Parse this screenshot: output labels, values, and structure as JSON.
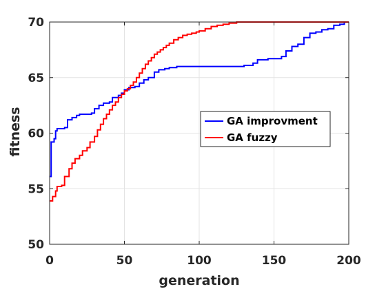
{
  "chart_data": {
    "type": "line",
    "title": "",
    "xlabel": "generation",
    "ylabel": "fitness",
    "xlim": [
      0,
      200
    ],
    "ylim": [
      50,
      70
    ],
    "xticks": [
      0,
      50,
      100,
      150,
      200
    ],
    "yticks": [
      50,
      55,
      60,
      65,
      70
    ],
    "xtick_labels": [
      "0",
      "50",
      "100",
      "150",
      "200"
    ],
    "ytick_labels": [
      "50",
      "55",
      "60",
      "65",
      "70"
    ],
    "grid": true,
    "legend_position": "center-right",
    "series": [
      {
        "name": "GA improvment",
        "color": "#0000ff",
        "step": true,
        "points": [
          [
            0,
            56.1
          ],
          [
            1,
            59.2
          ],
          [
            3,
            59.5
          ],
          [
            4,
            60.2
          ],
          [
            5,
            60.4
          ],
          [
            10,
            60.5
          ],
          [
            12,
            61.2
          ],
          [
            15,
            61.4
          ],
          [
            18,
            61.6
          ],
          [
            20,
            61.7
          ],
          [
            28,
            61.8
          ],
          [
            30,
            62.2
          ],
          [
            33,
            62.5
          ],
          [
            36,
            62.7
          ],
          [
            40,
            62.8
          ],
          [
            42,
            63.2
          ],
          [
            46,
            63.4
          ],
          [
            48,
            63.6
          ],
          [
            50,
            63.9
          ],
          [
            53,
            64.1
          ],
          [
            57,
            64.2
          ],
          [
            60,
            64.5
          ],
          [
            63,
            64.8
          ],
          [
            66,
            65.0
          ],
          [
            70,
            65.5
          ],
          [
            73,
            65.7
          ],
          [
            77,
            65.8
          ],
          [
            80,
            65.9
          ],
          [
            85,
            66.0
          ],
          [
            100,
            66.0
          ],
          [
            125,
            66.0
          ],
          [
            130,
            66.1
          ],
          [
            136,
            66.3
          ],
          [
            139,
            66.6
          ],
          [
            146,
            66.7
          ],
          [
            150,
            66.7
          ],
          [
            155,
            66.9
          ],
          [
            158,
            67.4
          ],
          [
            162,
            67.8
          ],
          [
            166,
            68.0
          ],
          [
            170,
            68.6
          ],
          [
            174,
            69.0
          ],
          [
            178,
            69.1
          ],
          [
            182,
            69.3
          ],
          [
            186,
            69.4
          ],
          [
            190,
            69.7
          ],
          [
            194,
            69.8
          ],
          [
            197,
            70.0
          ],
          [
            200,
            70.0
          ]
        ]
      },
      {
        "name": "GA fuzzy",
        "color": "#ff0000",
        "step": true,
        "points": [
          [
            0,
            53.9
          ],
          [
            2,
            54.3
          ],
          [
            4,
            54.8
          ],
          [
            5,
            55.2
          ],
          [
            8,
            55.3
          ],
          [
            10,
            56.1
          ],
          [
            13,
            56.8
          ],
          [
            15,
            57.3
          ],
          [
            17,
            57.7
          ],
          [
            20,
            58.0
          ],
          [
            22,
            58.4
          ],
          [
            25,
            58.7
          ],
          [
            27,
            59.2
          ],
          [
            30,
            59.7
          ],
          [
            32,
            60.3
          ],
          [
            34,
            60.8
          ],
          [
            36,
            61.3
          ],
          [
            38,
            61.7
          ],
          [
            40,
            62.1
          ],
          [
            42,
            62.5
          ],
          [
            44,
            62.8
          ],
          [
            46,
            63.2
          ],
          [
            48,
            63.5
          ],
          [
            50,
            63.8
          ],
          [
            52,
            64.0
          ],
          [
            54,
            64.3
          ],
          [
            56,
            64.6
          ],
          [
            58,
            65.0
          ],
          [
            60,
            65.4
          ],
          [
            62,
            65.8
          ],
          [
            64,
            66.2
          ],
          [
            66,
            66.5
          ],
          [
            68,
            66.8
          ],
          [
            70,
            67.1
          ],
          [
            72,
            67.3
          ],
          [
            74,
            67.5
          ],
          [
            76,
            67.7
          ],
          [
            78,
            67.9
          ],
          [
            80,
            68.1
          ],
          [
            83,
            68.4
          ],
          [
            86,
            68.6
          ],
          [
            89,
            68.8
          ],
          [
            92,
            68.9
          ],
          [
            95,
            69.0
          ],
          [
            98,
            69.1
          ],
          [
            100,
            69.2
          ],
          [
            104,
            69.4
          ],
          [
            108,
            69.6
          ],
          [
            112,
            69.7
          ],
          [
            116,
            69.8
          ],
          [
            120,
            69.9
          ],
          [
            125,
            70.0
          ],
          [
            200,
            70.0
          ]
        ]
      }
    ]
  }
}
